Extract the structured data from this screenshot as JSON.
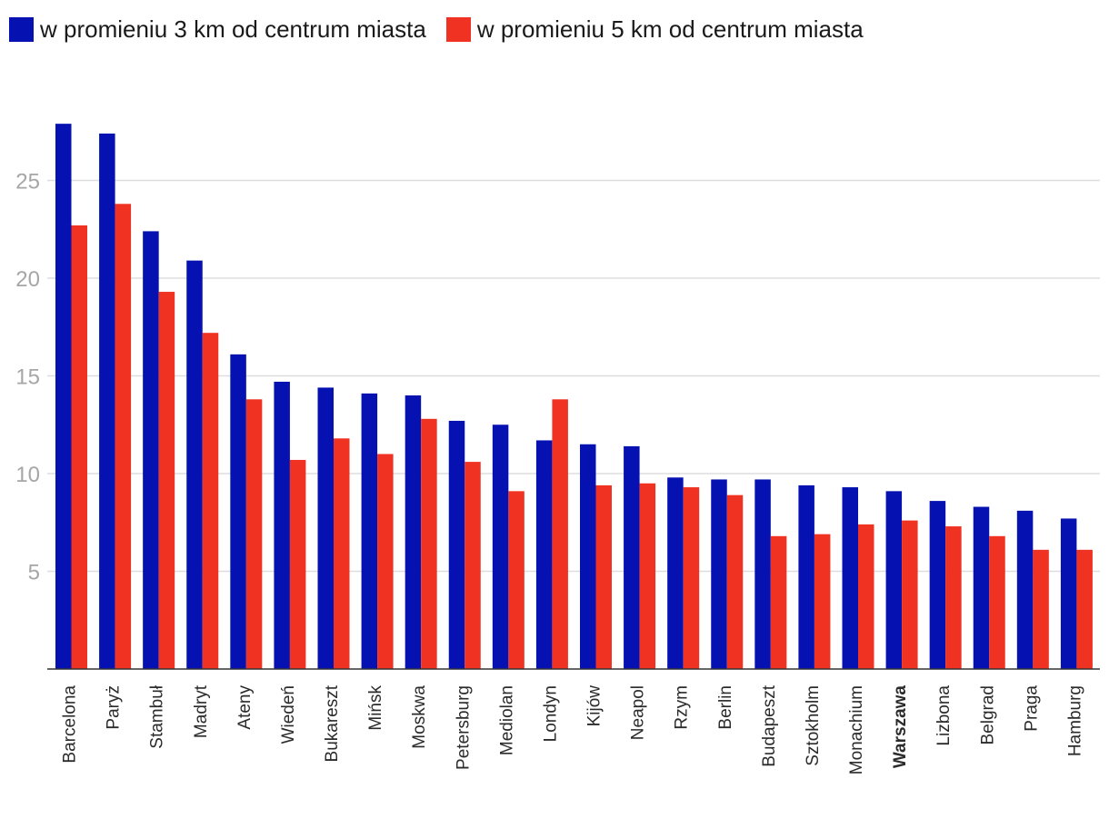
{
  "chart_data": {
    "type": "bar",
    "title": "",
    "xlabel": "",
    "ylabel": "",
    "ylim": [
      0,
      28
    ],
    "yticks": [
      5,
      10,
      15,
      20,
      25
    ],
    "grid": true,
    "legend_position": "top-left",
    "highlighted_category": "Warszawa",
    "categories": [
      "Barcelona",
      "Paryż",
      "Stambuł",
      "Madryt",
      "Ateny",
      "Wiedeń",
      "Bukareszt",
      "Mińsk",
      "Moskwa",
      "Petersburg",
      "Mediolan",
      "Londyn",
      "Kijów",
      "Neapol",
      "Rzym",
      "Berlin",
      "Budapeszt",
      "Sztokholm",
      "Monachium",
      "Warszawa",
      "Lizbona",
      "Belgrad",
      "Praga",
      "Hamburg"
    ],
    "series": [
      {
        "name": "w promieniu 3 km od centrum miasta",
        "color": "#0511b0",
        "values": [
          27.9,
          27.4,
          22.4,
          20.9,
          16.1,
          14.7,
          14.4,
          14.1,
          14.0,
          12.7,
          12.5,
          11.7,
          11.5,
          11.4,
          9.8,
          9.7,
          9.7,
          9.4,
          9.3,
          9.1,
          8.6,
          8.3,
          8.1,
          7.7
        ]
      },
      {
        "name": "w promieniu 5 km od centrum miasta",
        "color": "#f03222",
        "values": [
          22.7,
          23.8,
          19.3,
          17.2,
          13.8,
          10.7,
          11.8,
          11.0,
          12.8,
          10.6,
          9.1,
          13.8,
          9.4,
          9.5,
          9.3,
          8.9,
          6.8,
          6.9,
          7.4,
          7.6,
          7.3,
          6.8,
          6.1,
          6.1
        ]
      }
    ]
  }
}
